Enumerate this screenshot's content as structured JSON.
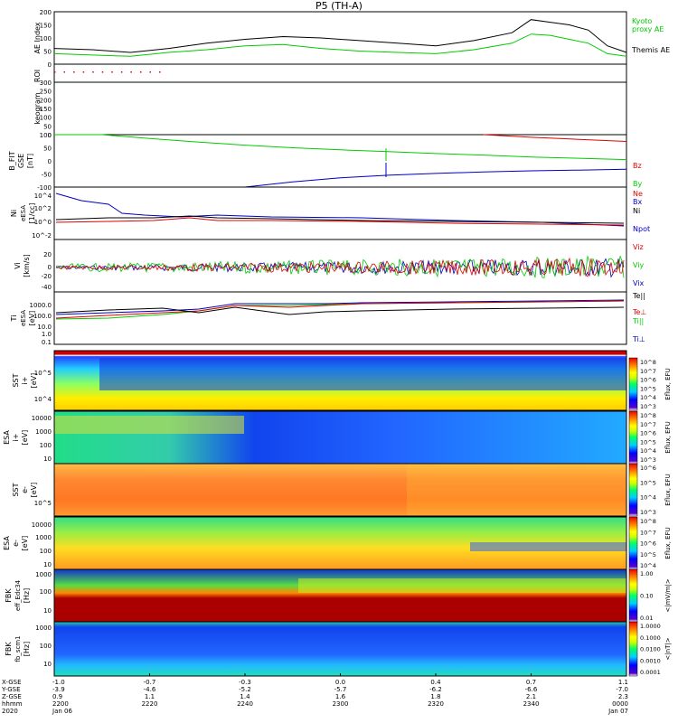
{
  "title": "P5 (TH-A)",
  "colors": {
    "black": "#000000",
    "green": "#00cc00",
    "red": "#e00000",
    "blue": "#0000c0",
    "orange": "#ff7f00"
  },
  "chart_data": [
    {
      "type": "line",
      "panel": "AE Index",
      "ylabel": [
        "AE Index"
      ],
      "ylim": [
        0,
        200
      ],
      "yticks": [
        "0",
        "50",
        "100",
        "150",
        "200"
      ],
      "x": [
        0,
        8,
        16,
        24,
        32,
        40,
        48,
        56,
        64,
        72,
        80,
        88,
        96,
        100,
        104,
        108,
        112,
        116,
        120
      ],
      "series": [
        {
          "name": "Themis AE",
          "color": "#000000",
          "values": [
            60,
            55,
            45,
            60,
            80,
            95,
            105,
            100,
            90,
            80,
            70,
            90,
            120,
            170,
            160,
            150,
            130,
            70,
            45
          ]
        },
        {
          "name": "Kyoto proxy AE",
          "color": "#00cc00",
          "values": [
            40,
            35,
            30,
            45,
            55,
            70,
            75,
            60,
            50,
            45,
            40,
            55,
            80,
            115,
            110,
            95,
            80,
            40,
            30
          ]
        }
      ],
      "legend": [
        {
          "text": "Kyoto",
          "color": "#00cc00"
        },
        {
          "text": "proxy AE",
          "color": "#00cc00"
        },
        {
          "text": "Themis AE",
          "color": "#000000"
        }
      ]
    },
    {
      "type": "scatter",
      "panel": "ROI",
      "ylabel": [
        "ROI"
      ],
      "x": [
        0,
        2,
        4,
        6,
        8,
        10,
        12,
        14,
        16,
        18,
        20,
        22
      ],
      "values": [
        1,
        1,
        1,
        1,
        1,
        1,
        1,
        1,
        1,
        1,
        1,
        1
      ]
    },
    {
      "type": "heatmap",
      "panel": "keogram",
      "ylabel": [
        "keogram"
      ],
      "ylim": [
        0,
        300
      ],
      "yticks": [
        "0",
        "50",
        "100",
        "150",
        "200",
        "250",
        "300"
      ]
    },
    {
      "type": "line",
      "panel": "B FIT GSE",
      "ylabel": [
        "B_FIT",
        "GSE",
        "[nT]"
      ],
      "ylim": [
        -100,
        100
      ],
      "yticks": [
        "-100",
        "-50",
        "0",
        "50",
        "100"
      ],
      "x": [
        0,
        10,
        20,
        30,
        40,
        50,
        60,
        70,
        80,
        90,
        100,
        110,
        120
      ],
      "series": [
        {
          "name": "Bz",
          "color": "#e00000",
          "values": [
            null,
            null,
            null,
            null,
            null,
            null,
            null,
            null,
            null,
            100,
            90,
            82,
            74
          ]
        },
        {
          "name": "By",
          "color": "#00cc00",
          "values": [
            110,
            100,
            85,
            72,
            60,
            50,
            42,
            35,
            28,
            22,
            15,
            10,
            5
          ]
        },
        {
          "name": "Bx",
          "color": "#0000c0",
          "values": [
            null,
            null,
            null,
            null,
            -100,
            -80,
            -65,
            -55,
            -48,
            -42,
            -38,
            -35,
            -32
          ]
        }
      ],
      "legend": [
        {
          "text": "Bz",
          "color": "#e00000"
        },
        {
          "text": "By",
          "color": "#00cc00"
        },
        {
          "text": "Bx",
          "color": "#0000c0"
        }
      ]
    },
    {
      "type": "line",
      "panel": "Ni",
      "ylabel": [
        "Ni",
        "eESA",
        "[1/cc]"
      ],
      "yticks": [
        "10^4",
        "10^2",
        "10^0",
        "10^-2"
      ],
      "legend": [
        {
          "text": "Ne",
          "color": "#e00000"
        },
        {
          "text": "Ni",
          "color": "#000000"
        },
        {
          "text": "Npot",
          "color": "#0000c0"
        }
      ]
    },
    {
      "type": "line",
      "panel": "Vi",
      "ylabel": [
        "Vi",
        "[km/s]"
      ],
      "ylim": [
        -40,
        30
      ],
      "yticks": [
        "-40",
        "-20",
        "0",
        "20"
      ],
      "legend": [
        {
          "text": "Viz",
          "color": "#e00000"
        },
        {
          "text": "Viy",
          "color": "#00cc00"
        },
        {
          "text": "Vix",
          "color": "#0000c0"
        }
      ]
    },
    {
      "type": "line",
      "panel": "Ti",
      "ylabel": [
        "Ti",
        "eESA",
        "[eV]"
      ],
      "yticks": [
        "1000.0",
        "100.0",
        "10.0",
        "1.0",
        "0.1"
      ],
      "legend": [
        {
          "text": "Te||",
          "color": "#000000"
        },
        {
          "text": "Te⊥",
          "color": "#e00000"
        },
        {
          "text": "Ti||",
          "color": "#00cc00"
        },
        {
          "text": "Ti⊥",
          "color": "#0000c0"
        }
      ]
    },
    {
      "type": "heatmap",
      "panel": "SST ion",
      "ylabel": [
        "SST",
        "i+",
        "[eV]"
      ],
      "yticks": [
        "10^5",
        "10^4"
      ],
      "colorbar": {
        "label": "Eflux, EFU",
        "ticks": [
          "10^8",
          "10^7",
          "10^6",
          "10^5",
          "10^4",
          "10^3"
        ]
      }
    },
    {
      "type": "heatmap",
      "panel": "ESA ion",
      "ylabel": [
        "ESA",
        "i+",
        "[eV]"
      ],
      "yticks": [
        "10000",
        "1000",
        "100",
        "10"
      ],
      "colorbar": {
        "label": "Eflux, EFU",
        "ticks": [
          "10^8",
          "10^7",
          "10^6",
          "10^5",
          "10^4",
          "10^3"
        ]
      }
    },
    {
      "type": "heatmap",
      "panel": "SST electron",
      "ylabel": [
        "SST",
        "e-",
        "[eV]"
      ],
      "yticks": [
        "10^5"
      ],
      "colorbar": {
        "label": "Eflux, EFU",
        "ticks": [
          "10^6",
          "10^5",
          "10^4",
          "10^3"
        ]
      }
    },
    {
      "type": "heatmap",
      "panel": "ESA electron",
      "ylabel": [
        "ESA",
        "e-",
        "[eV]"
      ],
      "yticks": [
        "10000",
        "1000",
        "100",
        "10"
      ],
      "colorbar": {
        "label": "Eflux, EFU",
        "ticks": [
          "10^8",
          "10^7",
          "10^6",
          "10^5",
          "10^4"
        ]
      }
    },
    {
      "type": "heatmap",
      "panel": "FBK Edc34",
      "ylabel": [
        "FBK",
        "eff_Edc34",
        "[Hz]"
      ],
      "yticks": [
        "1000",
        "100",
        "10"
      ],
      "colorbar": {
        "label": "<|mV/m|>",
        "ticks": [
          "1.00",
          "0.10",
          "0.01"
        ]
      }
    },
    {
      "type": "heatmap",
      "panel": "FBK Scm1",
      "ylabel": [
        "FBK",
        "fb_scm1",
        "[Hz]"
      ],
      "yticks": [
        "1000",
        "100",
        "10"
      ],
      "colorbar": {
        "label": "<|nT|>",
        "ticks": [
          "1.0000",
          "0.1000",
          "0.0100",
          "0.0010",
          "0.0001"
        ]
      }
    }
  ],
  "xaxis": {
    "row_labels": [
      "X-GSE",
      "Y-GSE",
      "Z-GSE",
      "hhmm",
      "2020"
    ],
    "ticks": [
      {
        "x": 0,
        "lines": [
          "-1.0",
          "-3.9",
          "0.9",
          "2200",
          "Jan 06"
        ]
      },
      {
        "x": 20,
        "lines": [
          "-0.7",
          "-4.6",
          "1.1",
          "2220",
          ""
        ]
      },
      {
        "x": 40,
        "lines": [
          "-0.3",
          "-5.2",
          "1.4",
          "2240",
          ""
        ]
      },
      {
        "x": 60,
        "lines": [
          "0.0",
          "-5.7",
          "1.6",
          "2300",
          ""
        ]
      },
      {
        "x": 80,
        "lines": [
          "0.4",
          "-6.2",
          "1.8",
          "2320",
          ""
        ]
      },
      {
        "x": 100,
        "lines": [
          "0.7",
          "-6.6",
          "2.1",
          "2340",
          ""
        ]
      },
      {
        "x": 120,
        "lines": [
          "1.1",
          "-7.0",
          "2.3",
          "0000",
          "Jan 07"
        ]
      }
    ]
  }
}
